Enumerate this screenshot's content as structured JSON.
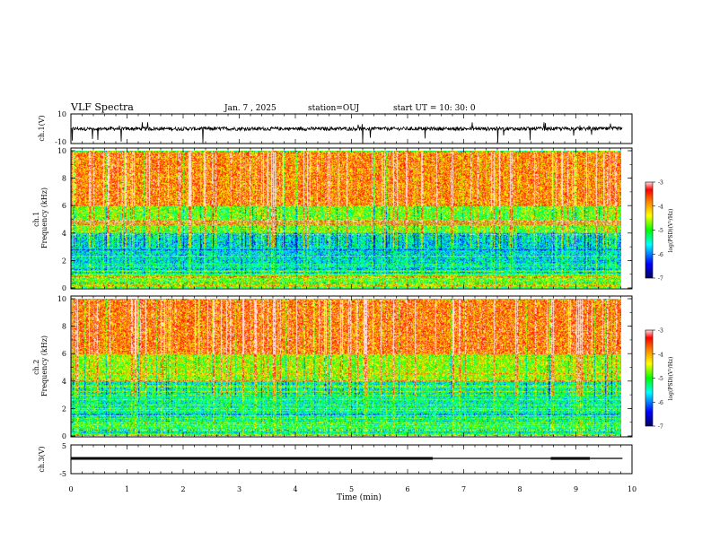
{
  "header": {
    "title": "VLF Spectra",
    "date": "Jan. 7 , 2025",
    "station": "station=OUJ",
    "start": "start  UT =   10: 30: 0"
  },
  "colorbar": {
    "label": "log(PSD)(V²/Hz)",
    "ticks": [
      "-3",
      "-4",
      "-5",
      "-6",
      "-7"
    ]
  },
  "colors": {
    "red": "#e8201c",
    "orange": "#f7a21b",
    "yellow": "#ffff00",
    "green": "#22dd44",
    "cyan": "#11dddd",
    "blue": "#1a3cf0",
    "navy": "#0a0a9a"
  },
  "chart_data": [
    {
      "type": "line",
      "panel": "ch1-waveform",
      "ylabel": "ch.1(V)",
      "yticks": [
        "10",
        "-10"
      ],
      "ylim": [
        -10,
        10
      ],
      "xlim": [
        0,
        10
      ],
      "baseline": 0,
      "note_series": "waveform near 0 V with spikes"
    },
    {
      "type": "heatmap",
      "panel": "ch1-spectrogram",
      "ylabel": "ch.1\nFrequency (kHz)",
      "yticks": [
        "0",
        "2",
        "4",
        "6",
        "8",
        "10"
      ],
      "ylim": [
        0,
        10
      ],
      "xlim": [
        0,
        9.83
      ],
      "color_range": [
        -7,
        -3
      ],
      "bands": [
        {
          "freq": [
            0,
            1
          ],
          "log_psd": -5.0
        },
        {
          "freq": [
            1,
            4
          ],
          "log_psd": -5.6
        },
        {
          "freq": [
            4,
            6
          ],
          "log_psd": -4.8
        },
        {
          "freq": [
            6,
            10
          ],
          "log_psd": -3.8
        }
      ]
    },
    {
      "type": "heatmap",
      "panel": "ch2-spectrogram",
      "ylabel": "ch.2\nFrequency (kHz)",
      "yticks": [
        "0",
        "2",
        "4",
        "6",
        "8",
        "10"
      ],
      "ylim": [
        0,
        10
      ],
      "xlim": [
        0,
        9.83
      ],
      "color_range": [
        -7,
        -3
      ],
      "bands": [
        {
          "freq": [
            0,
            1
          ],
          "log_psd": -5.2
        },
        {
          "freq": [
            1,
            4
          ],
          "log_psd": -5.4
        },
        {
          "freq": [
            4,
            6
          ],
          "log_psd": -4.6
        },
        {
          "freq": [
            6,
            10
          ],
          "log_psd": -3.7
        }
      ]
    },
    {
      "type": "line",
      "panel": "ch3-signal",
      "ylabel": "ch.3(V)",
      "yticks": [
        "5",
        "-5"
      ],
      "ylim": [
        -5,
        5
      ],
      "xlim": [
        0,
        10
      ],
      "xlabel": "Time (min)",
      "xticks": [
        "0",
        "1",
        "2",
        "3",
        "4",
        "5",
        "6",
        "7",
        "8",
        "9",
        "10"
      ],
      "segments": [
        {
          "x": [
            0,
            6.45
          ],
          "y": 0,
          "thick": true
        },
        {
          "x": [
            6.45,
            8.55
          ],
          "y": 0,
          "thick": false
        },
        {
          "x": [
            8.55,
            9.25
          ],
          "y": 0,
          "thick": true
        },
        {
          "x": [
            9.25,
            9.83
          ],
          "y": 0,
          "thick": false
        }
      ]
    }
  ]
}
